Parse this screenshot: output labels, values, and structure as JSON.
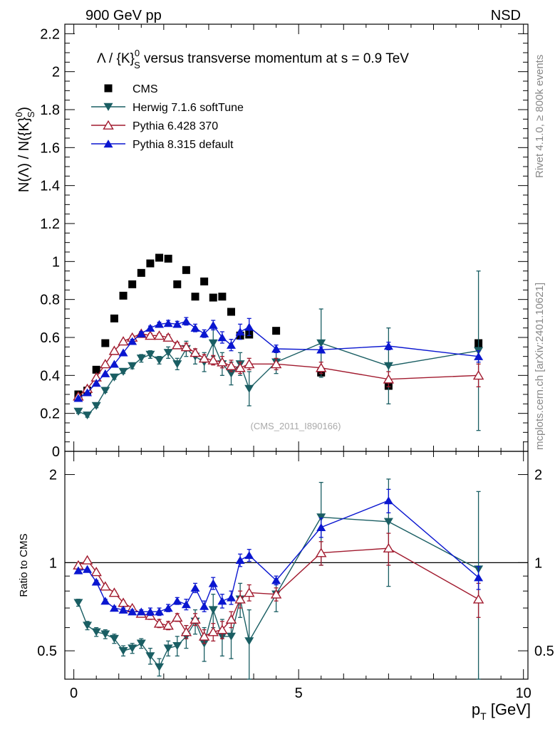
{
  "header": {
    "left": "900 GeV pp",
    "right": "NSD"
  },
  "side_labels": {
    "rivet": "Rivet 4.1.0, ≥ 800k events",
    "mcplots": "mcplots.cern.ch [arXiv:2401.10621]"
  },
  "plot_title": {
    "pre": "Λ / {K}",
    "sub": "S",
    "sup": "0",
    "mid": " versus transverse momentum at ",
    "sqrt_s": "s",
    "post": " = 0.9 TeV"
  },
  "ylabel": {
    "a": "N(Λ)  /  N({K}",
    "sub": "S",
    "sup": "0",
    "close": ")"
  },
  "xlabel": {
    "main": "p",
    "sub": "T",
    "unit": " [GeV]"
  },
  "ratio_ylabel": "Ratio to CMS",
  "watermark": "(CMS_2011_I890166)",
  "colors": {
    "cms": "#000000",
    "herwig": "#1a5e63",
    "pythia6": "#a11a2e",
    "pythia8": "#0a16d0"
  },
  "chart_data": [
    {
      "type": "scatter",
      "panel": "main",
      "title": "Λ / {K}S0 versus transverse momentum at √s = 0.9 TeV",
      "xlabel": "pT [GeV]",
      "ylabel": "N(Λ) / N({K}S0)",
      "xlim": [
        -0.2,
        10.1
      ],
      "ylim": [
        0,
        2.25
      ],
      "x_ticks": [
        0,
        5,
        10
      ],
      "y_ticks": [
        0,
        0.2,
        0.4,
        0.6,
        0.8,
        1,
        1.2,
        1.4,
        1.6,
        1.8,
        2,
        2.2
      ],
      "y_tick_labels": [
        "0",
        "0.2",
        "0.4",
        "0.6",
        "0.8",
        "1",
        "1.2",
        "1.4",
        "1.6",
        "1.8",
        "2",
        "2.2"
      ],
      "legend_position": "top-left",
      "series": [
        {
          "key": "cms",
          "name": "CMS",
          "marker": "square",
          "line": false,
          "x": [
            0.1,
            0.3,
            0.5,
            0.7,
            0.9,
            1.1,
            1.3,
            1.5,
            1.7,
            1.9,
            2.1,
            2.3,
            2.5,
            2.7,
            2.9,
            3.1,
            3.3,
            3.5,
            3.7,
            3.9,
            4.5,
            5.5,
            7.0,
            9.0
          ],
          "y": [
            0.3,
            0.32,
            0.43,
            0.57,
            0.7,
            0.82,
            0.88,
            0.94,
            0.99,
            1.02,
            1.015,
            0.88,
            0.955,
            0.815,
            0.895,
            0.81,
            0.815,
            0.735,
            0.61,
            0.615,
            0.635,
            0.415,
            0.345,
            0.57
          ],
          "err": [
            0.006,
            0.006,
            0.006,
            0.006,
            0.006,
            0.006,
            0.006,
            0.006,
            0.006,
            0.006,
            0.006,
            0.006,
            0.006,
            0.006,
            0.006,
            0.006,
            0.006,
            0.006,
            0.006,
            0.006,
            0.006,
            0.006,
            0.006,
            0.006
          ]
        },
        {
          "key": "herwig",
          "name": "Herwig 7.1.6 softTune",
          "marker": "triangle-down",
          "line": true,
          "x": [
            0.1,
            0.3,
            0.5,
            0.7,
            0.9,
            1.1,
            1.3,
            1.5,
            1.7,
            1.9,
            2.1,
            2.3,
            2.5,
            2.7,
            2.9,
            3.1,
            3.3,
            3.5,
            3.7,
            3.9,
            4.5,
            5.5,
            7.0,
            9.0
          ],
          "y": [
            0.21,
            0.19,
            0.24,
            0.32,
            0.39,
            0.42,
            0.45,
            0.49,
            0.51,
            0.48,
            0.52,
            0.46,
            0.54,
            0.5,
            0.47,
            0.57,
            0.46,
            0.41,
            0.46,
            0.33,
            0.47,
            0.57,
            0.45,
            0.53
          ],
          "err": [
            0.01,
            0.01,
            0.01,
            0.01,
            0.01,
            0.01,
            0.015,
            0.02,
            0.02,
            0.02,
            0.03,
            0.03,
            0.04,
            0.04,
            0.05,
            0.07,
            0.06,
            0.06,
            0.06,
            0.09,
            0.06,
            0.18,
            0.2,
            0.42
          ]
        },
        {
          "key": "pythia6",
          "name": "Pythia 6.428 370",
          "marker": "triangle-up-open",
          "line": true,
          "x": [
            0.1,
            0.3,
            0.5,
            0.7,
            0.9,
            1.1,
            1.3,
            1.5,
            1.7,
            1.9,
            2.1,
            2.3,
            2.5,
            2.7,
            2.9,
            3.1,
            3.3,
            3.5,
            3.7,
            3.9,
            4.5,
            5.5,
            7.0,
            9.0
          ],
          "y": [
            0.29,
            0.33,
            0.39,
            0.46,
            0.53,
            0.58,
            0.6,
            0.62,
            0.61,
            0.61,
            0.6,
            0.56,
            0.55,
            0.52,
            0.49,
            0.48,
            0.47,
            0.45,
            0.44,
            0.46,
            0.46,
            0.44,
            0.38,
            0.4
          ],
          "err": [
            0.006,
            0.006,
            0.006,
            0.006,
            0.006,
            0.006,
            0.01,
            0.01,
            0.01,
            0.01,
            0.015,
            0.015,
            0.02,
            0.02,
            0.02,
            0.025,
            0.03,
            0.03,
            0.03,
            0.03,
            0.03,
            0.03,
            0.04,
            0.06
          ]
        },
        {
          "key": "pythia8",
          "name": "Pythia 8.315 default",
          "marker": "triangle-up",
          "line": true,
          "x": [
            0.1,
            0.3,
            0.5,
            0.7,
            0.9,
            1.1,
            1.3,
            1.5,
            1.7,
            1.9,
            2.1,
            2.3,
            2.5,
            2.7,
            2.9,
            3.1,
            3.3,
            3.5,
            3.7,
            3.9,
            4.5,
            5.5,
            7.0,
            9.0
          ],
          "y": [
            0.28,
            0.31,
            0.36,
            0.41,
            0.46,
            0.52,
            0.58,
            0.62,
            0.65,
            0.67,
            0.675,
            0.67,
            0.685,
            0.65,
            0.62,
            0.665,
            0.6,
            0.56,
            0.63,
            0.655,
            0.54,
            0.535,
            0.555,
            0.5
          ],
          "err": [
            0.006,
            0.006,
            0.006,
            0.006,
            0.006,
            0.006,
            0.01,
            0.01,
            0.01,
            0.01,
            0.015,
            0.015,
            0.02,
            0.02,
            0.02,
            0.025,
            0.03,
            0.03,
            0.04,
            0.045,
            0.02,
            0.015,
            0.02,
            0.03
          ]
        }
      ]
    },
    {
      "type": "scatter",
      "panel": "ratio",
      "ylabel": "Ratio to CMS",
      "xlim": [
        -0.2,
        10.1
      ],
      "ylim": [
        0.4,
        2.4
      ],
      "log_y": true,
      "x_ticks": [
        0,
        5,
        10
      ],
      "x_tick_labels": [
        "0",
        "5",
        "10"
      ],
      "y_ticks": [
        0.5,
        1,
        2
      ],
      "y_tick_labels": [
        "0.5",
        "1",
        "2"
      ],
      "reference_line": 1,
      "series": [
        {
          "key": "herwig",
          "name": "Herwig 7.1.6 softTune",
          "marker": "triangle-down",
          "line": true,
          "x": [
            0.1,
            0.3,
            0.5,
            0.7,
            0.9,
            1.1,
            1.3,
            1.5,
            1.7,
            1.9,
            2.1,
            2.3,
            2.5,
            2.7,
            2.9,
            3.1,
            3.3,
            3.5,
            3.7,
            3.9,
            4.5,
            5.5,
            7.0,
            9.0
          ],
          "y": [
            0.73,
            0.61,
            0.58,
            0.57,
            0.55,
            0.5,
            0.51,
            0.53,
            0.48,
            0.44,
            0.51,
            0.52,
            0.56,
            0.63,
            0.53,
            0.69,
            0.56,
            0.56,
            0.75,
            0.54,
            0.78,
            1.43,
            1.38,
            0.95
          ],
          "err": [
            0.02,
            0.02,
            0.02,
            0.02,
            0.02,
            0.02,
            0.02,
            0.02,
            0.03,
            0.03,
            0.03,
            0.04,
            0.05,
            0.06,
            0.07,
            0.09,
            0.08,
            0.09,
            0.1,
            0.15,
            0.1,
            0.45,
            0.55,
            0.8
          ]
        },
        {
          "key": "pythia6",
          "name": "Pythia 6.428 370",
          "marker": "triangle-up-open",
          "line": true,
          "x": [
            0.1,
            0.3,
            0.5,
            0.7,
            0.9,
            1.1,
            1.3,
            1.5,
            1.7,
            1.9,
            2.1,
            2.3,
            2.5,
            2.7,
            2.9,
            3.1,
            3.3,
            3.5,
            3.7,
            3.9,
            4.5,
            5.5,
            7.0,
            9.0
          ],
          "y": [
            0.98,
            1.02,
            0.93,
            0.83,
            0.79,
            0.73,
            0.7,
            0.67,
            0.66,
            0.62,
            0.61,
            0.65,
            0.58,
            0.64,
            0.56,
            0.58,
            0.59,
            0.64,
            0.75,
            0.79,
            0.78,
            1.08,
            1.12,
            0.75
          ],
          "err": [
            0.01,
            0.01,
            0.01,
            0.01,
            0.01,
            0.01,
            0.01,
            0.01,
            0.02,
            0.02,
            0.02,
            0.02,
            0.03,
            0.03,
            0.03,
            0.04,
            0.04,
            0.04,
            0.05,
            0.05,
            0.04,
            0.1,
            0.14,
            0.1
          ]
        },
        {
          "key": "pythia8",
          "name": "Pythia 8.315 default",
          "marker": "triangle-up",
          "line": true,
          "x": [
            0.1,
            0.3,
            0.5,
            0.7,
            0.9,
            1.1,
            1.3,
            1.5,
            1.7,
            1.9,
            2.1,
            2.3,
            2.5,
            2.7,
            2.9,
            3.1,
            3.3,
            3.5,
            3.7,
            3.9,
            4.5,
            5.5,
            7.0,
            9.0
          ],
          "y": [
            0.94,
            0.95,
            0.86,
            0.74,
            0.7,
            0.69,
            0.68,
            0.68,
            0.68,
            0.68,
            0.7,
            0.74,
            0.72,
            0.82,
            0.71,
            0.85,
            0.74,
            0.76,
            1.02,
            1.06,
            0.87,
            1.32,
            1.63,
            0.89
          ],
          "err": [
            0.01,
            0.01,
            0.01,
            0.01,
            0.01,
            0.01,
            0.01,
            0.01,
            0.02,
            0.02,
            0.02,
            0.02,
            0.03,
            0.03,
            0.03,
            0.04,
            0.04,
            0.04,
            0.05,
            0.05,
            0.03,
            0.1,
            0.15,
            0.08
          ]
        }
      ]
    }
  ]
}
